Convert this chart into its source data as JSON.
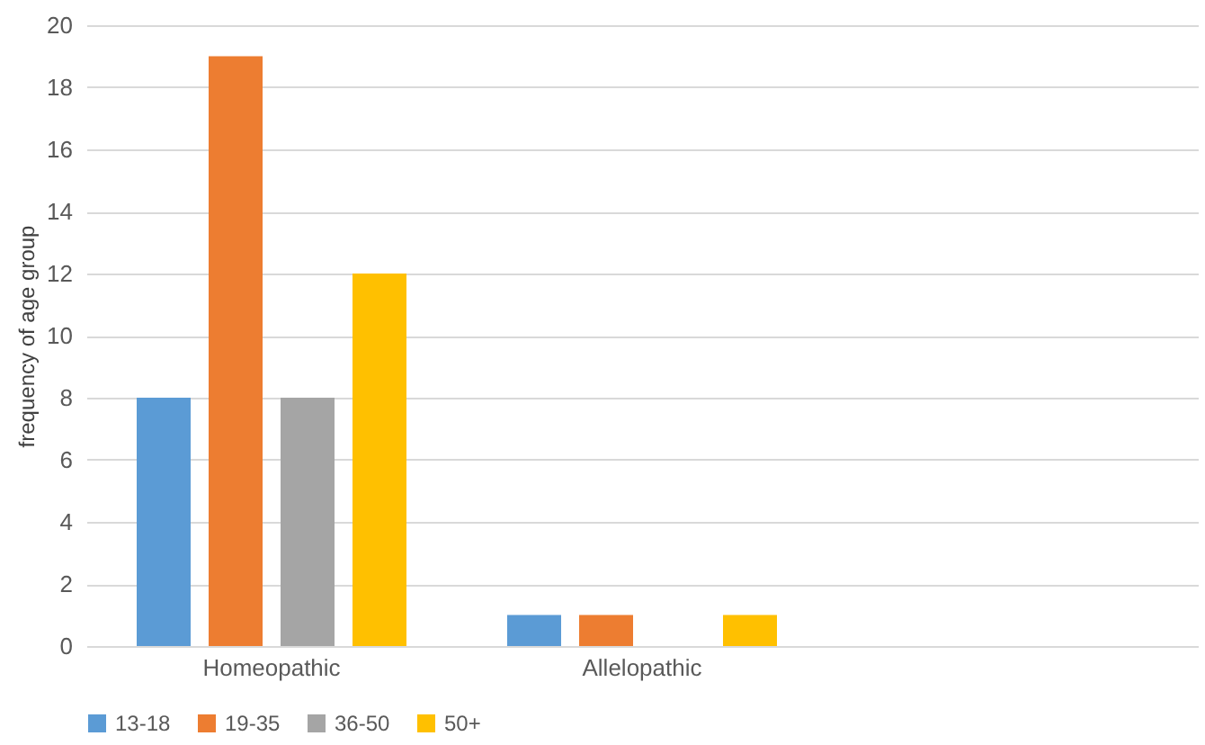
{
  "chart_data": {
    "type": "bar",
    "ylabel": "frequency of age group",
    "categories": [
      "Homeopathic",
      "Allelopathic",
      null
    ],
    "series": [
      {
        "name": "13-18",
        "color": "#5b9bd5",
        "values": [
          8,
          1,
          null
        ]
      },
      {
        "name": "19-35",
        "color": "#ed7d31",
        "values": [
          19,
          1,
          null
        ]
      },
      {
        "name": "36-50",
        "color": "#a5a5a5",
        "values": [
          8,
          null,
          null
        ]
      },
      {
        "name": "50+",
        "color": "#ffc000",
        "values": [
          12,
          1,
          null
        ]
      }
    ],
    "ylim": [
      0,
      20
    ],
    "yticks": [
      0,
      2,
      4,
      6,
      8,
      10,
      12,
      14,
      16,
      18,
      20
    ],
    "grid": "y",
    "legend": "bottom"
  }
}
